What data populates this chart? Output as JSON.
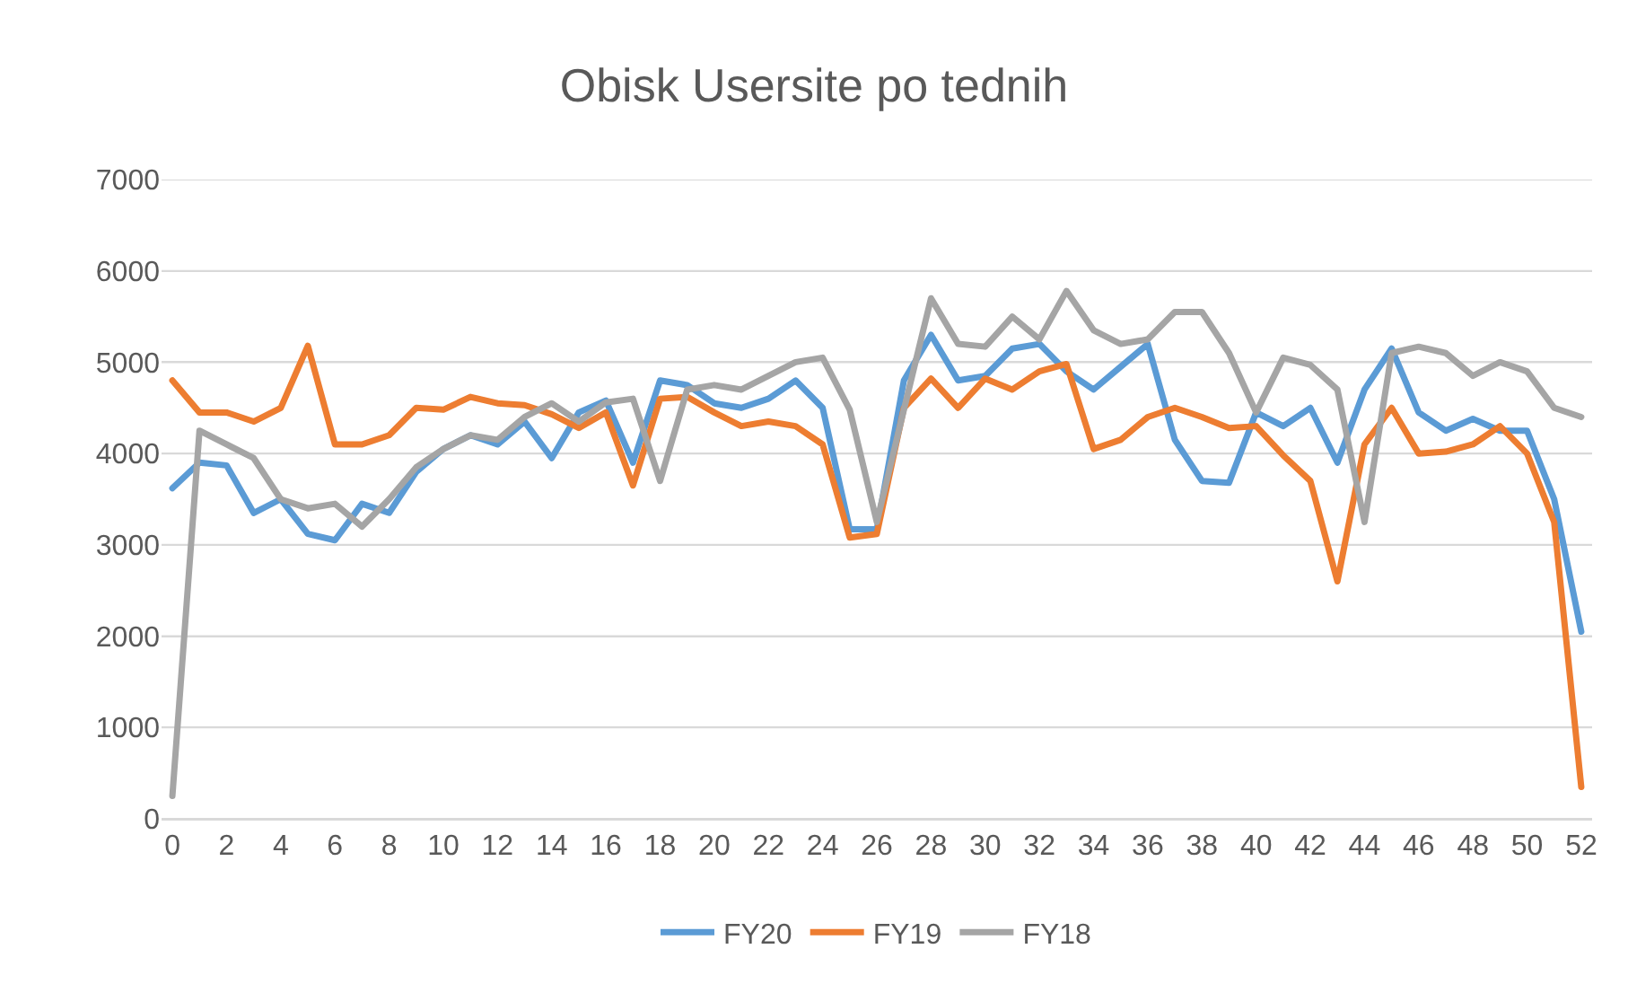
{
  "chart_data": {
    "type": "line",
    "title": "Obisk Usersite po tednih",
    "x": [
      0,
      1,
      2,
      3,
      4,
      5,
      6,
      7,
      8,
      9,
      10,
      11,
      12,
      13,
      14,
      15,
      16,
      17,
      18,
      19,
      20,
      21,
      22,
      23,
      24,
      25,
      26,
      27,
      28,
      29,
      30,
      31,
      32,
      33,
      34,
      35,
      36,
      37,
      38,
      39,
      40,
      41,
      42,
      43,
      44,
      45,
      46,
      47,
      48,
      49,
      50,
      51,
      52
    ],
    "series": [
      {
        "name": "FY20",
        "color": "#5b9bd5",
        "values": [
          3620,
          3900,
          3870,
          3350,
          3500,
          3120,
          3050,
          3450,
          3350,
          3800,
          4050,
          4200,
          4100,
          4350,
          3950,
          4450,
          4580,
          3900,
          4800,
          4750,
          4550,
          4500,
          4600,
          4800,
          4500,
          3170,
          3170,
          4800,
          5300,
          4800,
          4850,
          5150,
          5200,
          4900,
          4700,
          4950,
          5200,
          4150,
          3700,
          3680,
          4450,
          4300,
          4500,
          3900,
          4700,
          5150,
          4450,
          4250,
          4380,
          4250,
          4250,
          3500,
          2050
        ]
      },
      {
        "name": "FY19",
        "color": "#ed7d31",
        "values": [
          4800,
          4450,
          4450,
          4350,
          4500,
          5180,
          4100,
          4100,
          4200,
          4500,
          4480,
          4620,
          4550,
          4530,
          4430,
          4280,
          4450,
          3650,
          4600,
          4620,
          4450,
          4300,
          4350,
          4300,
          4100,
          3080,
          3120,
          4500,
          4820,
          4500,
          4820,
          4700,
          4900,
          4980,
          4050,
          4150,
          4400,
          4500,
          4400,
          4280,
          4300,
          3980,
          3700,
          2600,
          4100,
          4500,
          4000,
          4020,
          4100,
          4300,
          4000,
          3250,
          350
        ]
      },
      {
        "name": "FY18",
        "color": "#a5a5a5",
        "values": [
          250,
          4250,
          4100,
          3950,
          3500,
          3400,
          3450,
          3200,
          3500,
          3850,
          4050,
          4200,
          4150,
          4400,
          4550,
          4350,
          4560,
          4600,
          3700,
          4700,
          4750,
          4700,
          4850,
          5000,
          5050,
          4480,
          3250,
          4480,
          5700,
          5200,
          5170,
          5500,
          5250,
          5780,
          5350,
          5200,
          5250,
          5550,
          5550,
          5100,
          4450,
          5050,
          4970,
          4700,
          3250,
          5100,
          5170,
          5100,
          4850,
          5000,
          4900,
          4500,
          4400
        ]
      }
    ],
    "xlim": [
      -0.4,
      52.4
    ],
    "xticks": [
      0,
      2,
      4,
      6,
      8,
      10,
      12,
      14,
      16,
      18,
      20,
      22,
      24,
      26,
      28,
      30,
      32,
      34,
      36,
      38,
      40,
      42,
      44,
      46,
      48,
      50,
      52
    ],
    "ylim": [
      0,
      7000
    ],
    "yticks": [
      0,
      1000,
      2000,
      3000,
      4000,
      5000,
      6000,
      7000
    ],
    "grid": "y",
    "legend": "bottom",
    "marker": "none",
    "line_style": "solid"
  }
}
